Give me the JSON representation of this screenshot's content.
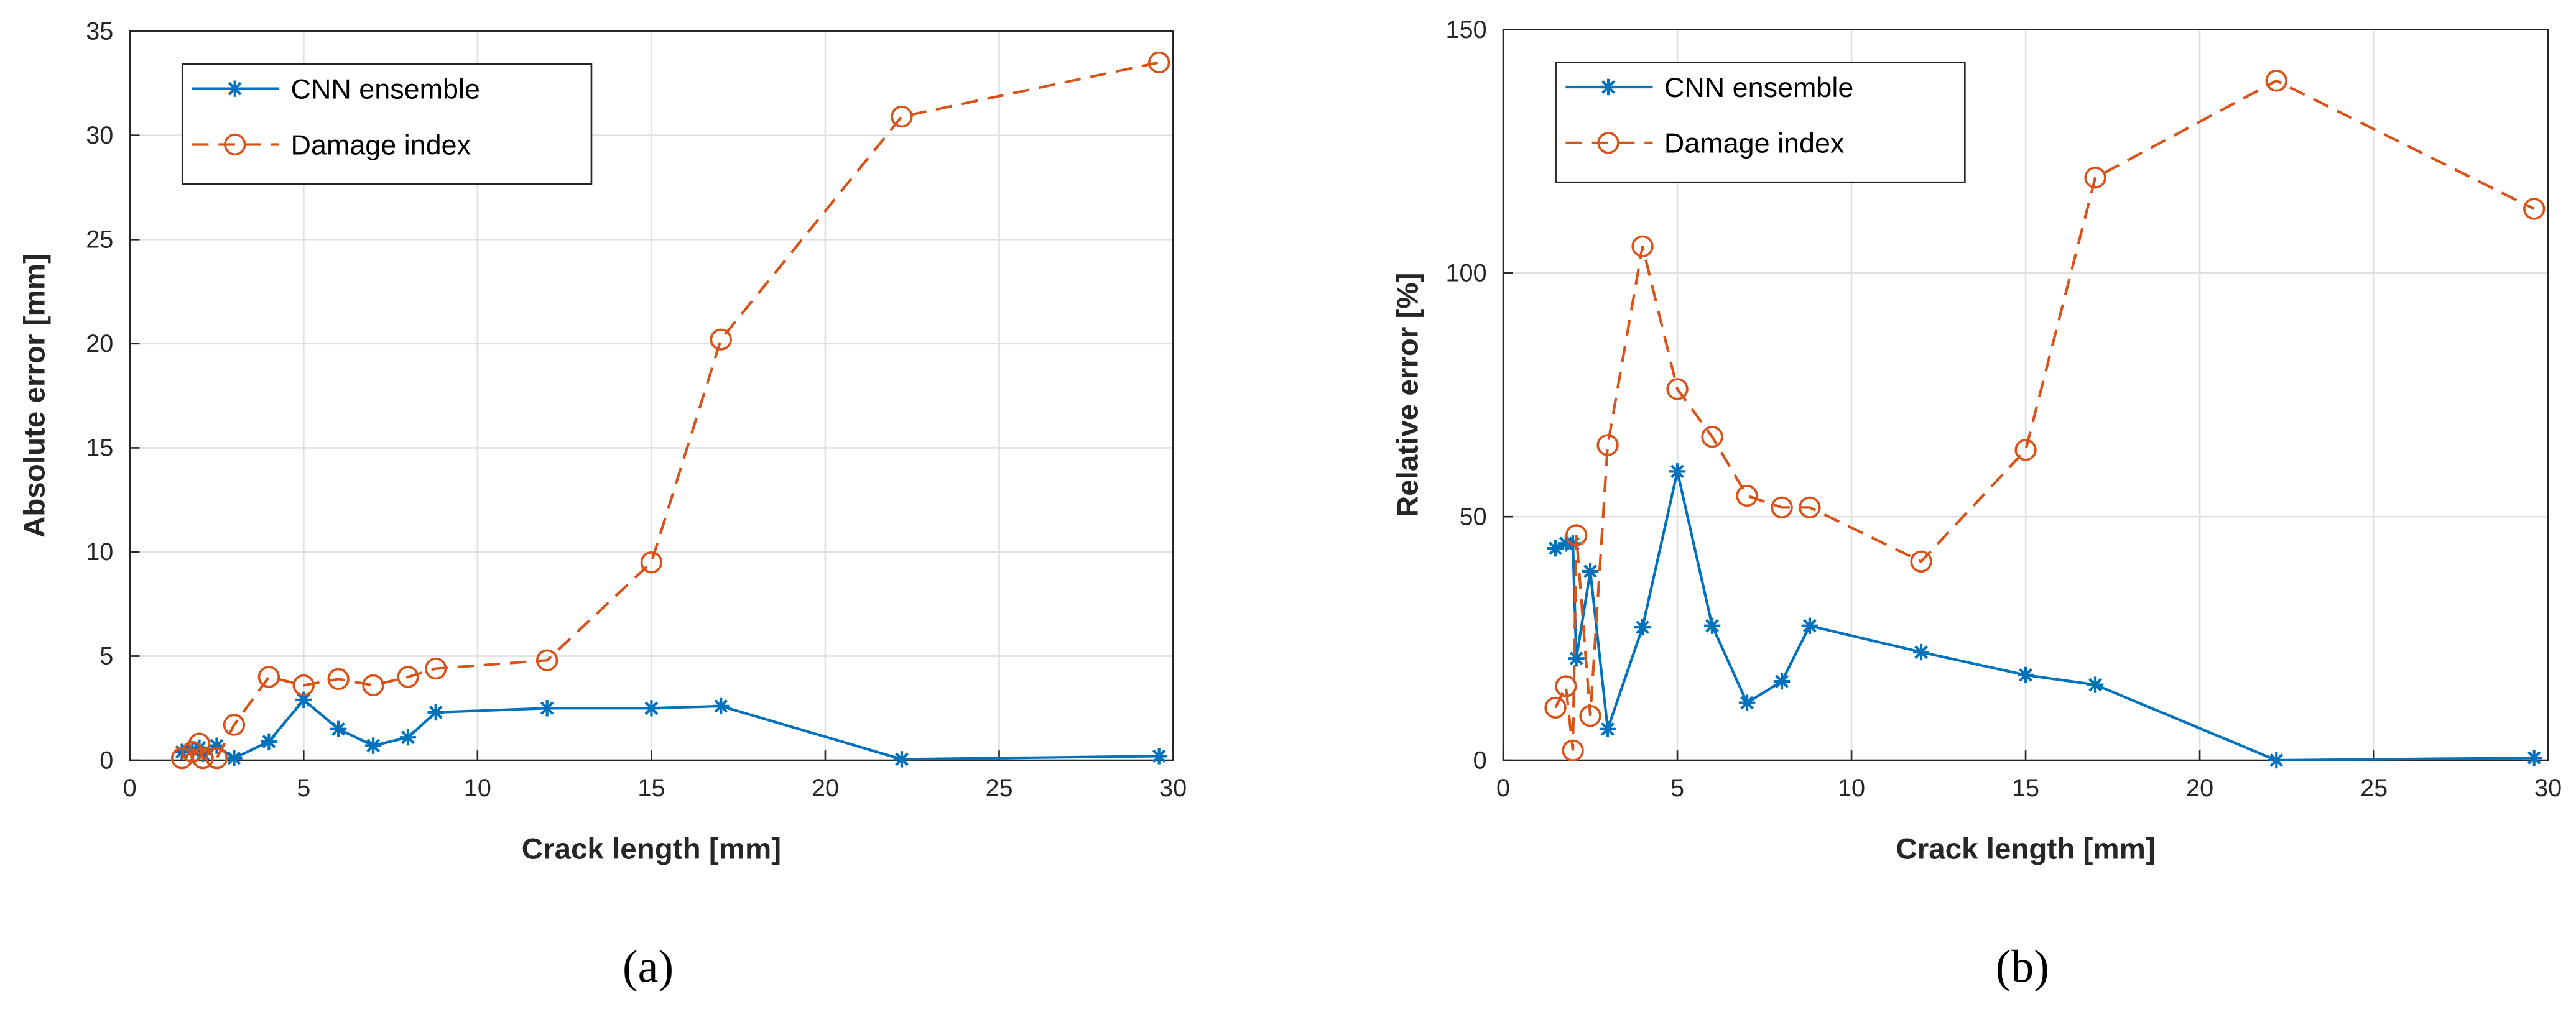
{
  "chart_data": [
    {
      "type": "line",
      "caption": "(a)",
      "xlabel": "Crack length [mm]",
      "ylabel": "Absolute error [mm]",
      "xlim": [
        0,
        30
      ],
      "xticks": [
        0,
        5,
        10,
        15,
        20,
        25,
        30
      ],
      "ylim": [
        0,
        35
      ],
      "yticks": [
        0,
        5,
        10,
        15,
        20,
        25,
        30,
        35
      ],
      "grid": true,
      "legend": "upper left",
      "x": [
        1.5,
        1.8,
        2.0,
        2.1,
        2.5,
        3,
        4,
        5,
        6,
        7,
        8,
        8.8,
        12,
        15,
        17,
        22.2,
        29.6
      ],
      "series": [
        {
          "name": "CNN ensemble",
          "color": "#0072bd",
          "marker": "*",
          "linestyle": "solid",
          "values": [
            0.4,
            0.5,
            0.6,
            0.3,
            0.7,
            0.1,
            0.9,
            2.9,
            1.5,
            0.7,
            1.1,
            2.3,
            2.5,
            2.5,
            2.6,
            0.05,
            0.2
          ]
        },
        {
          "name": "Damage index",
          "color": "#d95319",
          "marker": "o",
          "linestyle": "dashed",
          "values": [
            0.1,
            0.4,
            0.8,
            0.1,
            0.1,
            1.7,
            4.0,
            3.6,
            3.9,
            3.6,
            4.0,
            4.4,
            4.8,
            9.5,
            20.2,
            30.9,
            33.5
          ]
        }
      ]
    },
    {
      "type": "line",
      "caption": "(b)",
      "xlabel": "Crack length [mm]",
      "ylabel": "Relative error [%]",
      "xlim": [
        0,
        30
      ],
      "xticks": [
        0,
        5,
        10,
        15,
        20,
        25,
        30
      ],
      "ylim": [
        0,
        150
      ],
      "yticks": [
        0,
        50,
        100,
        150
      ],
      "grid": true,
      "legend": "upper left",
      "x": [
        1.5,
        1.8,
        2.0,
        2.1,
        2.5,
        3,
        4,
        5,
        6,
        7,
        8,
        8.8,
        12,
        15,
        17,
        22.2,
        29.6
      ],
      "series": [
        {
          "name": "CNN ensemble",
          "color": "#0072bd",
          "marker": "*",
          "linestyle": "solid",
          "values": [
            43.5,
            44.5,
            44.5,
            20.9,
            38.8,
            6.4,
            27.3,
            59.3,
            27.6,
            11.8,
            16.2,
            27.6,
            22.2,
            17.5,
            15.5,
            0,
            0.5
          ]
        },
        {
          "name": "Damage index",
          "color": "#d95319",
          "marker": "o",
          "linestyle": "dashed",
          "values": [
            10.8,
            15.2,
            2.0,
            46.2,
            9.1,
            64.7,
            105.5,
            76.2,
            66.4,
            54.3,
            51.9,
            51.9,
            40.8,
            63.7,
            119.6,
            139.5,
            113.2
          ]
        }
      ]
    }
  ]
}
